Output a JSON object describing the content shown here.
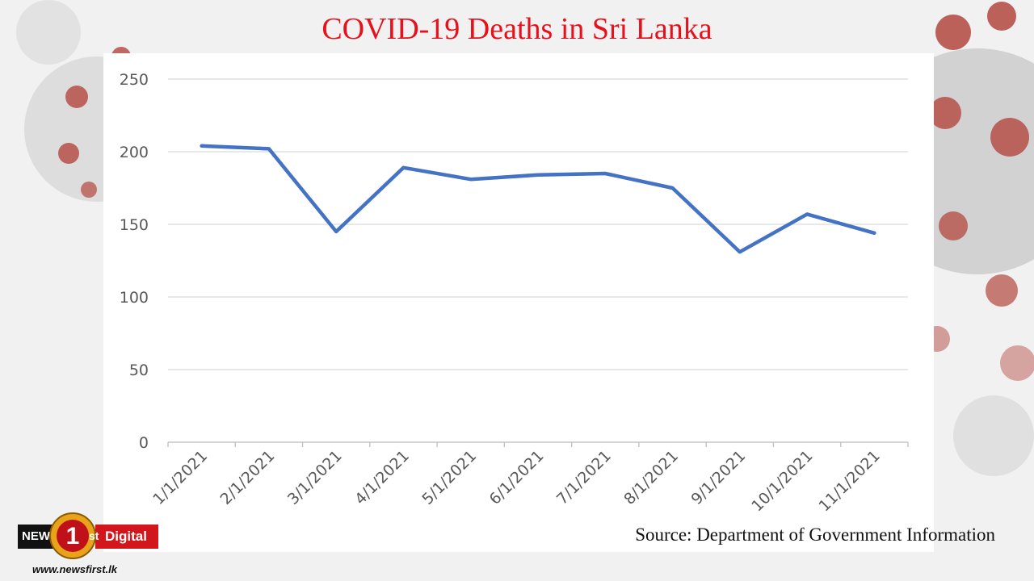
{
  "header": {
    "title": "COVID-19 Deaths in Sri Lanka"
  },
  "source": "Source: Department of Government Information",
  "branding": {
    "news_label": "NEWS",
    "digital_label": "Digital",
    "one_label": "1",
    "st_label": "st",
    "url": "www.newsfirst.lk"
  },
  "colors": {
    "title": "#e8101a",
    "line": "#4472c4",
    "brand_red": "#d3161c"
  },
  "chart_data": {
    "type": "line",
    "title": "COVID-19 Deaths in Sri Lanka",
    "xlabel": "",
    "ylabel": "",
    "categories": [
      "1/1/2021",
      "2/1/2021",
      "3/1/2021",
      "4/1/2021",
      "5/1/2021",
      "6/1/2021",
      "7/1/2021",
      "8/1/2021",
      "9/1/2021",
      "10/1/2021",
      "11/1/2021"
    ],
    "series": [
      {
        "values": [
          204,
          202,
          145,
          189,
          181,
          184,
          185,
          175,
          131,
          157,
          144
        ]
      }
    ],
    "ylim": [
      0,
      250
    ],
    "yticks": [
      0,
      50,
      100,
      150,
      200,
      250
    ],
    "grid": true,
    "legend": "none"
  }
}
